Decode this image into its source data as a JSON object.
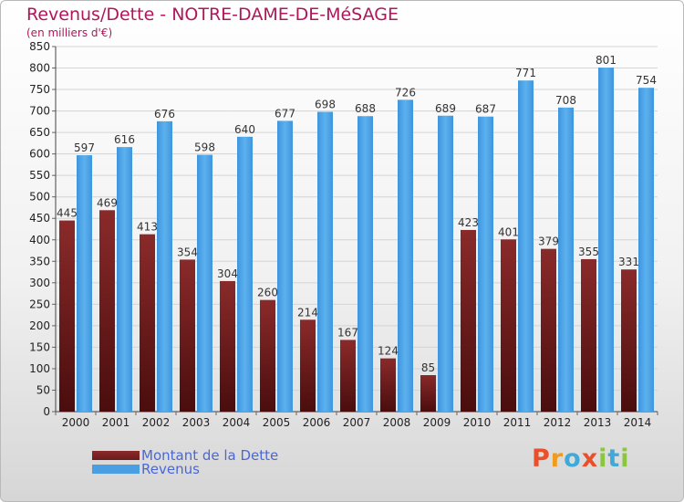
{
  "title": "Revenus/Dette - NOTRE-DAME-DE-MéSAGE",
  "subtitle": "(en milliers d'€)",
  "brand": {
    "letters": [
      "P",
      "r",
      "o",
      "x",
      "i",
      "t",
      "i"
    ]
  },
  "colors": {
    "debt": "#6a1c1c",
    "revenue": "#4a9fe3",
    "title": "#b0175a",
    "legend_text": "#4a67d8",
    "grid": "#d4d4d4",
    "brand": [
      "#e8502b",
      "#f29a1d",
      "#3fa9d8",
      "#e8502b",
      "#8cc63e",
      "#3fa9d8",
      "#8cc63e"
    ]
  },
  "chart_data": {
    "type": "bar",
    "categories": [
      "2000",
      "2001",
      "2002",
      "2003",
      "2004",
      "2005",
      "2006",
      "2007",
      "2008",
      "2009",
      "2010",
      "2011",
      "2012",
      "2013",
      "2014"
    ],
    "series": [
      {
        "name": "Montant de la Dette",
        "values": [
          445,
          469,
          413,
          354,
          304,
          260,
          214,
          167,
          124,
          85,
          423,
          401,
          379,
          355,
          331
        ]
      },
      {
        "name": "Revenus",
        "values": [
          597,
          616,
          676,
          598,
          640,
          677,
          698,
          688,
          726,
          689,
          687,
          771,
          708,
          801,
          754
        ]
      }
    ],
    "ylim": [
      0,
      850
    ],
    "yticks": [
      0,
      50,
      100,
      150,
      200,
      250,
      300,
      350,
      400,
      450,
      500,
      550,
      600,
      650,
      700,
      750,
      800,
      850
    ],
    "grid": true,
    "legend_position": "bottom-left"
  }
}
